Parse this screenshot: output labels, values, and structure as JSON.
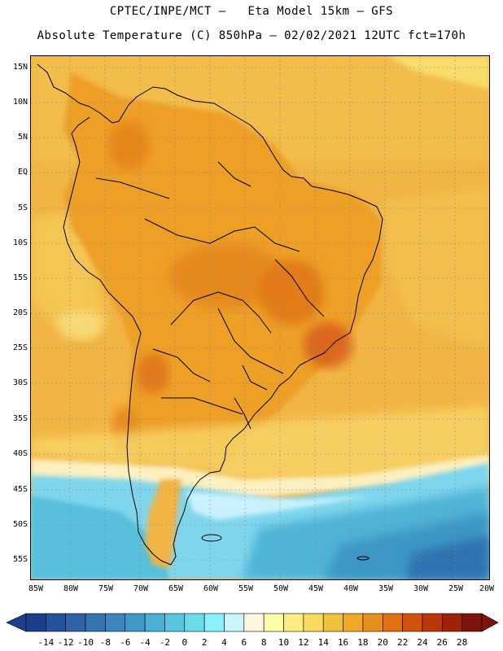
{
  "header": {
    "line1": "CPTEC/INPE/MCT –   Eta Model 15km – GFS",
    "line2": "Absolute Temperature (C) 850hPa – 02/02/2021 12UTC fct=170h"
  },
  "map": {
    "lat_labels": [
      "15N",
      "10N",
      "5N",
      "EQ",
      "5S",
      "10S",
      "15S",
      "20S",
      "25S",
      "30S",
      "35S",
      "40S",
      "45S",
      "50S",
      "55S"
    ],
    "lon_labels": [
      "85W",
      "80W",
      "75W",
      "70W",
      "65W",
      "60W",
      "55W",
      "50W",
      "45W",
      "40W",
      "35W",
      "30W",
      "25W",
      "20W"
    ],
    "ocean_base_color": "#f0a030",
    "land_color": "#f0a030"
  },
  "colorbar": {
    "labels": [
      "-14",
      "-12",
      "-10",
      "-8",
      "-6",
      "-4",
      "-2",
      "0",
      "2",
      "4",
      "6",
      "8",
      "10",
      "12",
      "14",
      "16",
      "18",
      "20",
      "22",
      "24",
      "26",
      "28"
    ],
    "colors": [
      "#1c3f8c",
      "#24519c",
      "#2f62a8",
      "#3674b2",
      "#3d86bd",
      "#3f9ac7",
      "#48b0d4",
      "#58c6df",
      "#6cdbe9",
      "#8aefff",
      "#c9f5ff",
      "#fff6e0",
      "#ffffaa",
      "#fbed80",
      "#f7db5c",
      "#f2c13b",
      "#efa828",
      "#e88e1c",
      "#e27012",
      "#d0520c",
      "#b8380a",
      "#9c2208",
      "#7d1408"
    ]
  }
}
